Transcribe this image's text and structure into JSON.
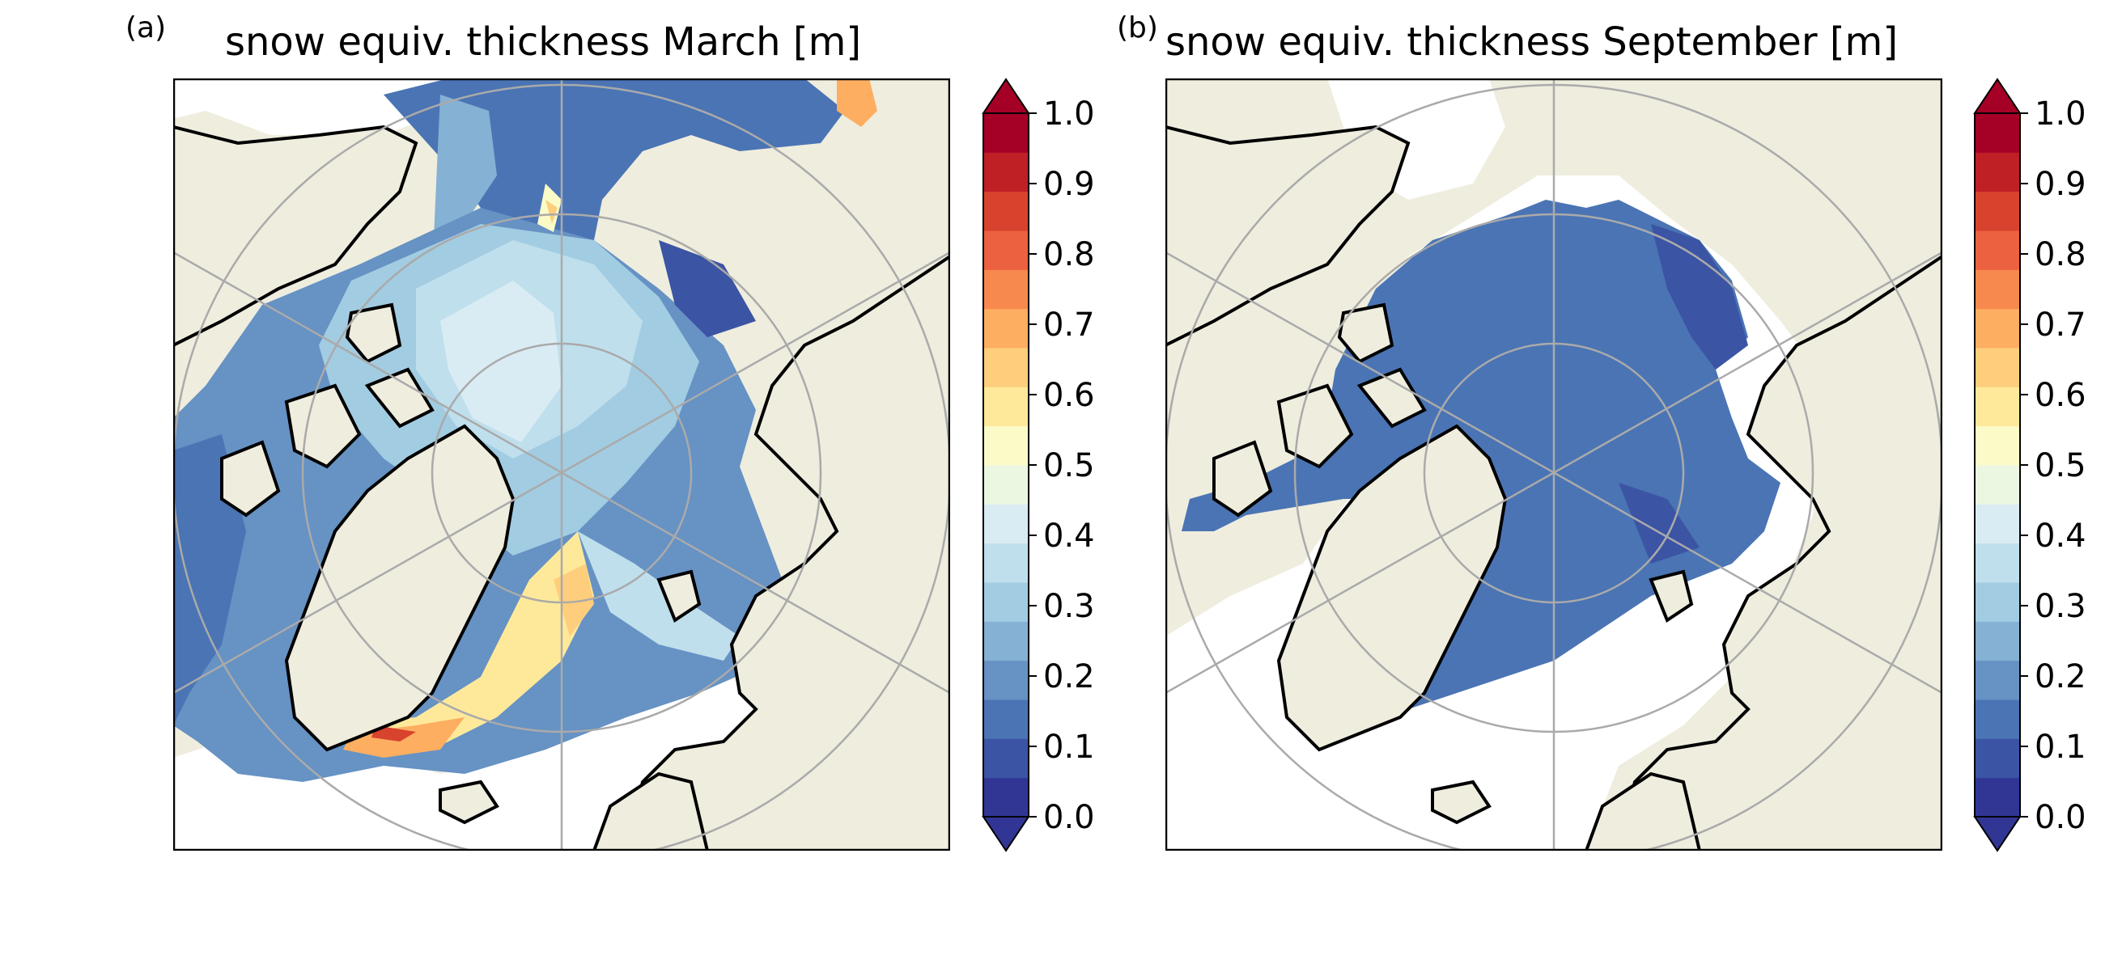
{
  "figure": {
    "panels": [
      {
        "letter": "(a)",
        "title": "snow equiv. thickness March [m]"
      },
      {
        "letter": "(b)",
        "title": "snow equiv. thickness September [m]"
      }
    ]
  },
  "colorbar": {
    "ticks": [
      "0.0",
      "0.1",
      "0.2",
      "0.3",
      "0.4",
      "0.5",
      "0.6",
      "0.7",
      "0.8",
      "0.9",
      "1.0"
    ],
    "colormap": "RdYlBu_r",
    "levels": [
      "#313695",
      "#3b54a4",
      "#4a74b4",
      "#6692c4",
      "#84b1d4",
      "#a2cce2",
      "#bfdfec",
      "#daecf3",
      "#ecf7e2",
      "#fbfbc8",
      "#fee99a",
      "#fece7c",
      "#fdae61",
      "#f7894e",
      "#ec613f",
      "#d8432e",
      "#bf2026",
      "#a50026"
    ],
    "extend": "both"
  },
  "colors": {
    "land": "#efedde",
    "ocean": "#ffffff",
    "coastline": "#000000",
    "graticule": "#aaaaaa"
  }
}
